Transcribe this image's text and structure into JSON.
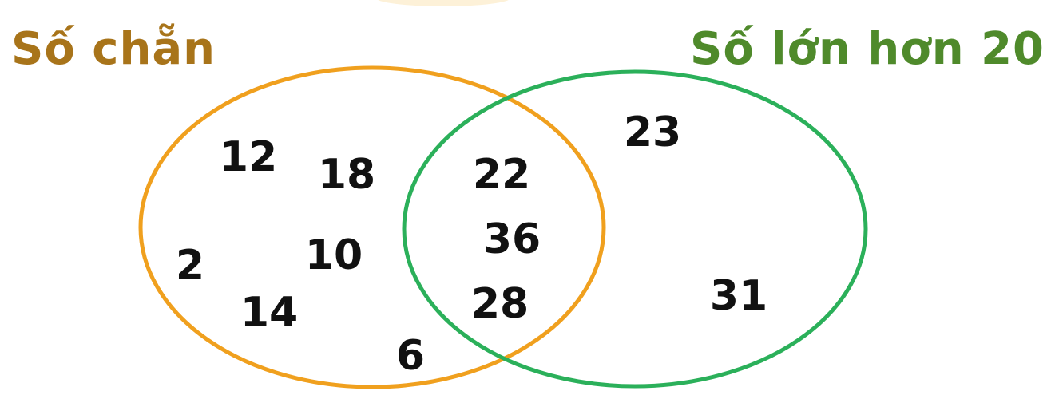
{
  "sets": {
    "left": {
      "title": "Số chẵn",
      "color": "#a8741a",
      "stroke": "#f0a01e"
    },
    "right": {
      "title": "Số lớn hơn 20",
      "color": "#4f8a2b",
      "stroke": "#2bb05a"
    }
  },
  "numbers": {
    "left_only": [
      "12",
      "18",
      "2",
      "10",
      "14",
      "6"
    ],
    "both": [
      "22",
      "36",
      "28"
    ],
    "right_only": [
      "23",
      "31"
    ]
  }
}
